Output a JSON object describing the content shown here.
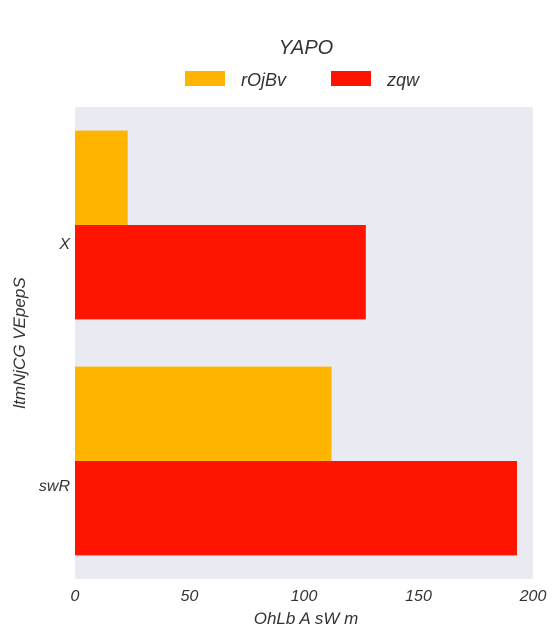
{
  "chart_data": {
    "type": "bar",
    "orientation": "horizontal",
    "title": "YAPO",
    "xlabel": "OhLb A sW m",
    "ylabel": "ltmNjCG VEpepS",
    "categories": [
      "X",
      "swR"
    ],
    "series": [
      {
        "name": "rOjBv",
        "values": [
          23,
          112
        ],
        "color": "#ffb400"
      },
      {
        "name": "zqw",
        "values": [
          127,
          193
        ],
        "color": "#ff1400"
      }
    ],
    "xlim": [
      0,
      200
    ],
    "xticks": [
      0,
      50,
      100,
      150,
      200
    ],
    "grid": false,
    "legend": "top-center",
    "background": "#eaeaf2"
  }
}
